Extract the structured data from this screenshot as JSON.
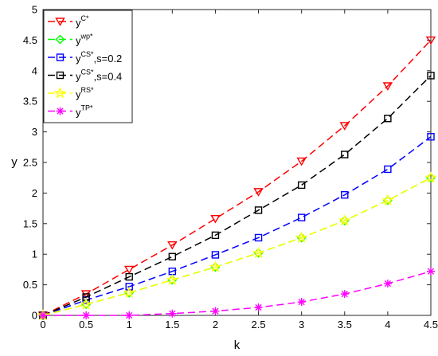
{
  "chart_data": {
    "type": "line",
    "xlabel": "k",
    "ylabel": "y",
    "xlim": [
      0,
      4.5
    ],
    "ylim": [
      0,
      5
    ],
    "x_ticks": [
      "0",
      "0.5",
      "1",
      "1.5",
      "2",
      "2.5",
      "3",
      "3.5",
      "4",
      "4.5"
    ],
    "y_ticks": [
      "0",
      "0.5",
      "1",
      "1.5",
      "2",
      "2.5",
      "3",
      "3.5",
      "4",
      "4.5",
      "5"
    ],
    "grid": false,
    "legend_position": "top-left",
    "x": [
      0,
      0.5,
      1,
      1.5,
      2,
      2.5,
      3,
      3.5,
      4,
      4.5
    ],
    "series": [
      {
        "name": "y",
        "sup": "C*",
        "color": "#ff0000",
        "marker": "triangle-down",
        "values": [
          0,
          0.35,
          0.75,
          1.15,
          1.58,
          2.02,
          2.52,
          3.1,
          3.75,
          4.5
        ]
      },
      {
        "name": "y",
        "sup": "wp*",
        "color": "#00ff00",
        "marker": "diamond",
        "values": [
          0,
          0.18,
          0.37,
          0.58,
          0.79,
          1.02,
          1.27,
          1.55,
          1.88,
          2.25
        ]
      },
      {
        "name": "y",
        "sup": "CS*",
        "suffix": ",s=0.2",
        "color": "#0000ff",
        "marker": "square",
        "values": [
          0,
          0.25,
          0.47,
          0.72,
          0.99,
          1.27,
          1.6,
          1.97,
          2.39,
          2.92
        ]
      },
      {
        "name": "y",
        "sup": "CS*",
        "suffix": ",s=0.4",
        "color": "#000000",
        "marker": "square",
        "values": [
          0,
          0.3,
          0.63,
          0.96,
          1.31,
          1.72,
          2.13,
          2.63,
          3.22,
          3.92
        ]
      },
      {
        "name": "y",
        "sup": "RS*",
        "color": "#ffff00",
        "marker": "star",
        "values": [
          0,
          0.18,
          0.37,
          0.58,
          0.79,
          1.02,
          1.27,
          1.55,
          1.88,
          2.25
        ]
      },
      {
        "name": "y",
        "sup": "TP*",
        "color": "#ff00ff",
        "marker": "asterisk",
        "values": [
          0,
          0,
          0,
          0.03,
          0.07,
          0.13,
          0.22,
          0.35,
          0.52,
          0.72
        ]
      }
    ]
  }
}
